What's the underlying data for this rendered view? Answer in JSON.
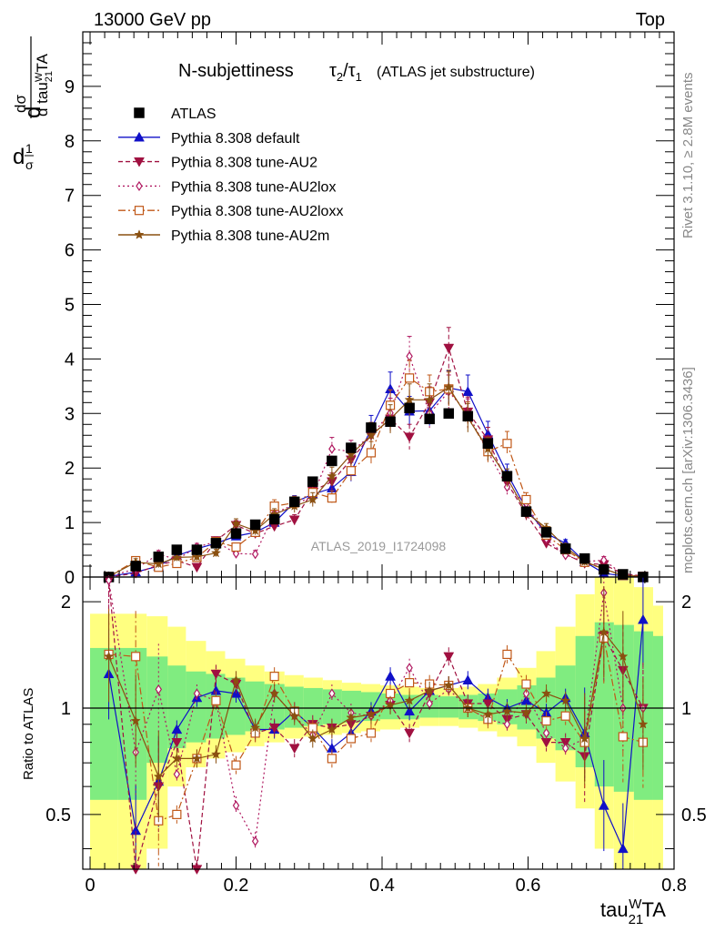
{
  "header": {
    "energy_label": "13000 GeV pp",
    "process_label": "Top"
  },
  "side_labels": {
    "rivet": "Rivet 3.1.10, ≥ 2.8M events",
    "mcplots": "mcplots.cern.ch [arXiv:1306.3436]"
  },
  "colors": {
    "atlas": "#000000",
    "default": "#1010c8",
    "au2": "#a01040",
    "au2lox": "#b01860",
    "au2loxx": "#c05818",
    "au2m": "#8a5010",
    "band_inner": "#80ec80",
    "band_outer": "#ffff80"
  },
  "chart_data": {
    "type": "line",
    "title": "N-subjettiness τ₂/τ₁ (ATLAS jet substructure)",
    "title_main": "N-subjettiness",
    "title_sub": "(ATLAS jet substructure)",
    "watermark": "ATLAS_2019_I1724098",
    "xlabel": "tau21WTA",
    "ylabel": "(1/σ) dσ/d tau21WTA",
    "ratio_ylabel": "Ratio to ATLAS",
    "xlim": [
      -0.01,
      0.8
    ],
    "ylim": [
      0,
      10
    ],
    "ratio_ylim": [
      0.35,
      2.35
    ],
    "xticks": [
      "0",
      "0.2",
      "0.4",
      "0.6",
      "0.8"
    ],
    "yticks": [
      "0",
      "1",
      "2",
      "3",
      "4",
      "5",
      "6",
      "7",
      "8",
      "9"
    ],
    "ratio_yticks": [
      "0.5",
      "1",
      "2"
    ],
    "x": [
      0.0256,
      0.0625,
      0.0938,
      0.1188,
      0.1463,
      0.1725,
      0.2,
      0.2263,
      0.2525,
      0.28,
      0.305,
      0.3313,
      0.3575,
      0.385,
      0.4113,
      0.4375,
      0.465,
      0.4913,
      0.5175,
      0.545,
      0.5713,
      0.5975,
      0.625,
      0.6513,
      0.6775,
      0.7038,
      0.73,
      0.7575
    ],
    "ratio_bands": {
      "inner": [
        [
          0.0,
          0.0,
          0.55,
          1.48
        ],
        [
          0.0375,
          0.0,
          0.55,
          1.48
        ],
        [
          0.0775,
          0.7,
          1.4
        ],
        [
          0.1063,
          0.77,
          1.32
        ],
        [
          0.1313,
          0.8,
          1.27
        ],
        [
          0.1588,
          0.82,
          1.25
        ],
        [
          0.185,
          0.84,
          1.22
        ],
        [
          0.2125,
          0.86,
          1.19
        ],
        [
          0.2388,
          0.87,
          1.17
        ],
        [
          0.2663,
          0.88,
          1.15
        ],
        [
          0.2925,
          0.89,
          1.14
        ],
        [
          0.3188,
          0.9,
          1.13
        ],
        [
          0.345,
          0.91,
          1.12
        ],
        [
          0.3713,
          0.92,
          1.11
        ],
        [
          0.3975,
          0.93,
          1.1
        ],
        [
          0.425,
          0.93,
          1.09
        ],
        [
          0.4513,
          0.94,
          1.09
        ],
        [
          0.4775,
          0.94,
          1.08
        ],
        [
          0.505,
          0.93,
          1.09
        ],
        [
          0.5313,
          0.92,
          1.1
        ],
        [
          0.5575,
          0.9,
          1.13
        ],
        [
          0.585,
          0.87,
          1.16
        ],
        [
          0.6113,
          0.82,
          1.22
        ],
        [
          0.6375,
          0.76,
          1.32
        ],
        [
          0.665,
          0.68,
          1.6
        ],
        [
          0.6913,
          0.6,
          1.75
        ],
        [
          0.7175,
          0.58,
          1.72
        ],
        [
          0.745,
          0.55,
          1.65
        ],
        [
          0.7713,
          0.55,
          1.6
        ]
      ],
      "outer": [
        [
          0.0,
          0.35,
          1.85
        ],
        [
          0.0375,
          0.35,
          1.85
        ],
        [
          0.0775,
          0.4,
          1.82
        ],
        [
          0.1063,
          0.6,
          1.7
        ],
        [
          0.1313,
          0.68,
          1.55
        ],
        [
          0.1588,
          0.72,
          1.45
        ],
        [
          0.185,
          0.75,
          1.38
        ],
        [
          0.2125,
          0.78,
          1.32
        ],
        [
          0.2388,
          0.8,
          1.27
        ],
        [
          0.2663,
          0.82,
          1.24
        ],
        [
          0.2925,
          0.83,
          1.22
        ],
        [
          0.3188,
          0.84,
          1.2
        ],
        [
          0.345,
          0.85,
          1.18
        ],
        [
          0.3713,
          0.86,
          1.17
        ],
        [
          0.3975,
          0.87,
          1.16
        ],
        [
          0.425,
          0.88,
          1.15
        ],
        [
          0.4513,
          0.89,
          1.14
        ],
        [
          0.4775,
          0.89,
          1.14
        ],
        [
          0.505,
          0.88,
          1.15
        ],
        [
          0.5313,
          0.86,
          1.17
        ],
        [
          0.5575,
          0.83,
          1.22
        ],
        [
          0.585,
          0.78,
          1.3
        ],
        [
          0.6113,
          0.7,
          1.45
        ],
        [
          0.6375,
          0.62,
          1.7
        ],
        [
          0.665,
          0.52,
          2.1
        ],
        [
          0.6913,
          0.4,
          2.35
        ],
        [
          0.7175,
          0.35,
          2.35
        ],
        [
          0.745,
          0.35,
          2.2
        ],
        [
          0.7713,
          0.35,
          1.95
        ]
      ]
    },
    "series": [
      {
        "name": "ATLAS",
        "style": "data",
        "values": [
          0.0,
          0.2,
          0.37,
          0.5,
          0.5,
          0.62,
          0.8,
          0.96,
          1.06,
          1.38,
          1.75,
          2.13,
          2.37,
          2.74,
          2.85,
          3.1,
          2.9,
          3.0,
          2.95,
          2.45,
          1.85,
          1.2,
          0.82,
          0.52,
          0.34,
          0.14,
          0.05,
          0.0
        ]
      },
      {
        "name": "Pythia 8.308 default",
        "style": "solid",
        "marker": "triangle-up",
        "values": [
          0.01,
          0.09,
          0.2,
          0.39,
          0.52,
          0.62,
          0.75,
          0.82,
          1.0,
          1.37,
          1.52,
          1.63,
          1.93,
          2.72,
          3.45,
          3.04,
          3.05,
          3.47,
          3.4,
          2.62,
          1.9,
          1.25,
          0.8,
          0.62,
          0.28,
          0.07,
          0.02,
          0.0
        ]
      },
      {
        "name": "Pythia 8.308 tune-AU2",
        "style": "dashed",
        "marker": "triangle-down",
        "values": [
          0.0,
          0.07,
          0.22,
          0.3,
          0.18,
          0.67,
          0.95,
          0.8,
          0.93,
          1.05,
          1.58,
          1.75,
          2.15,
          2.6,
          2.9,
          2.57,
          3.2,
          4.2,
          3.03,
          2.52,
          1.73,
          1.15,
          0.62,
          0.42,
          0.25,
          0.23,
          0.06,
          0.02
        ]
      },
      {
        "name": "Pythia 8.308 tune-AU2lox",
        "style": "dotted",
        "marker": "diamond-open",
        "values": [
          0.01,
          0.15,
          0.42,
          0.32,
          0.55,
          0.65,
          0.43,
          0.42,
          1.17,
          1.33,
          1.48,
          2.35,
          2.3,
          2.6,
          3.01,
          4.05,
          3.0,
          3.4,
          3.0,
          2.3,
          1.65,
          1.35,
          0.7,
          0.4,
          0.28,
          0.31,
          0.05,
          0.01
        ]
      },
      {
        "name": "Pythia 8.308 tune-AU2loxx",
        "style": "dashdot",
        "marker": "square-open",
        "values": [
          0.01,
          0.3,
          0.18,
          0.25,
          0.36,
          0.65,
          0.55,
          0.82,
          1.3,
          1.36,
          1.55,
          1.45,
          1.95,
          2.28,
          3.15,
          3.65,
          3.4,
          3.45,
          2.95,
          2.3,
          2.45,
          1.42,
          0.77,
          0.5,
          0.27,
          0.15,
          0.03,
          0.01
        ]
      },
      {
        "name": "Pythia 8.308 tune-AU2m",
        "style": "solid",
        "marker": "star",
        "values": [
          0.01,
          0.27,
          0.24,
          0.36,
          0.37,
          0.44,
          0.98,
          0.85,
          1.15,
          1.3,
          1.42,
          1.85,
          2.25,
          2.6,
          2.9,
          3.25,
          3.25,
          3.48,
          2.92,
          2.35,
          1.82,
          1.18,
          0.9,
          0.55,
          0.28,
          0.15,
          0.03,
          0.01
        ]
      }
    ],
    "ratio_series": [
      {
        "name": "Pythia 8.308 default",
        "values": [
          1.25,
          0.45,
          0.62,
          0.87,
          1.07,
          1.12,
          1.1,
          0.87,
          0.87,
          0.98,
          0.88,
          0.77,
          0.85,
          0.98,
          1.23,
          0.98,
          1.12,
          1.16,
          1.2,
          1.07,
          1.0,
          1.05,
          0.97,
          1.07,
          0.85,
          0.53,
          0.4,
          1.78
        ]
      },
      {
        "name": "Pythia 8.308 tune-AU2",
        "values": [
          2.3,
          0.35,
          0.6,
          0.8,
          0.35,
          1.25,
          1.17,
          0.85,
          0.88,
          0.77,
          0.9,
          0.88,
          0.9,
          0.95,
          1.02,
          0.85,
          1.1,
          1.4,
          1.03,
          1.03,
          0.93,
          0.96,
          0.8,
          0.8,
          0.73,
          1.6,
          1.28,
          1.0
        ]
      },
      {
        "name": "Pythia 8.308 tune-AU2lox",
        "values": [
          2.3,
          0.75,
          1.13,
          0.65,
          1.1,
          1.05,
          0.53,
          0.42,
          1.1,
          0.95,
          0.84,
          1.1,
          0.97,
          0.95,
          1.05,
          1.3,
          1.03,
          1.13,
          1.0,
          0.93,
          0.9,
          1.1,
          0.85,
          0.77,
          0.82,
          2.12,
          1.0,
          1.0
        ]
      },
      {
        "name": "Pythia 8.308 tune-AU2loxx",
        "values": [
          1.42,
          1.4,
          0.48,
          0.5,
          0.72,
          1.05,
          0.69,
          0.85,
          1.23,
          0.98,
          0.88,
          0.72,
          0.82,
          0.85,
          1.1,
          1.18,
          1.17,
          1.16,
          1.0,
          0.93,
          1.42,
          1.17,
          0.92,
          0.95,
          0.8,
          1.58,
          0.83,
          0.8
        ]
      },
      {
        "name": "Pythia 8.308 tune-AU2m",
        "values": [
          1.4,
          0.92,
          0.64,
          0.72,
          0.72,
          0.74,
          1.2,
          0.88,
          1.1,
          0.95,
          0.82,
          0.87,
          0.94,
          0.96,
          1.02,
          1.05,
          1.12,
          1.16,
          1.0,
          0.96,
          0.98,
          0.97,
          1.1,
          1.05,
          0.82,
          1.64,
          1.4,
          0.9
        ]
      }
    ]
  }
}
